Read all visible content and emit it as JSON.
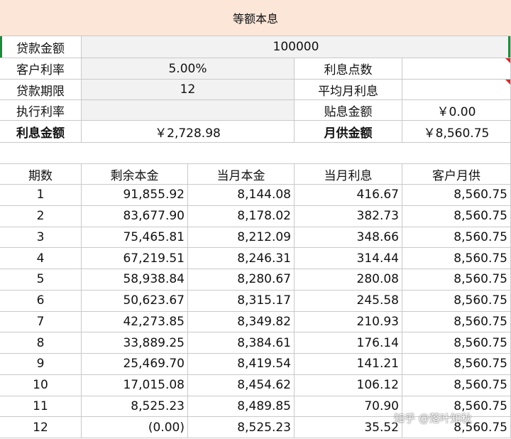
{
  "title": "等额本息",
  "summary": {
    "loan_amount_label": "贷款金额",
    "loan_amount_value": "100000",
    "customer_rate_label": "客户利率",
    "customer_rate_value": "5.00%",
    "interest_points_label": "利息点数",
    "interest_points_value": "",
    "loan_term_label": "贷款期限",
    "loan_term_value": "12",
    "avg_monthly_interest_label": "平均月利息",
    "avg_monthly_interest_value": "",
    "exec_rate_label": "执行利率",
    "exec_rate_value": "",
    "subsidy_label": "贴息金额",
    "subsidy_value": "￥0.00",
    "total_interest_label": "利息金额",
    "total_interest_value": "￥2,728.98",
    "monthly_payment_label": "月供金额",
    "monthly_payment_value": "￥8,560.75"
  },
  "table": {
    "headers": [
      "期数",
      "剩余本金",
      "当月本金",
      "当月利息",
      "客户月供"
    ],
    "rows": [
      [
        "1",
        "91,855.92",
        "8,144.08",
        "416.67",
        "8,560.75"
      ],
      [
        "2",
        "83,677.90",
        "8,178.02",
        "382.73",
        "8,560.75"
      ],
      [
        "3",
        "75,465.81",
        "8,212.09",
        "348.66",
        "8,560.75"
      ],
      [
        "4",
        "67,219.51",
        "8,246.31",
        "314.44",
        "8,560.75"
      ],
      [
        "5",
        "58,938.84",
        "8,280.67",
        "280.08",
        "8,560.75"
      ],
      [
        "6",
        "50,623.67",
        "8,315.17",
        "245.58",
        "8,560.75"
      ],
      [
        "7",
        "42,273.85",
        "8,349.82",
        "210.93",
        "8,560.75"
      ],
      [
        "8",
        "33,889.25",
        "8,384.61",
        "176.14",
        "8,560.75"
      ],
      [
        "9",
        "25,469.70",
        "8,419.54",
        "141.21",
        "8,560.75"
      ],
      [
        "10",
        "17,015.08",
        "8,454.62",
        "106.12",
        "8,560.75"
      ],
      [
        "11",
        "8,525.23",
        "8,489.85",
        "70.90",
        "8,560.75"
      ],
      [
        "12",
        "(0.00)",
        "8,525.23",
        "35.52",
        "8,560.75"
      ]
    ]
  },
  "watermark": "知乎 @落叶知秋"
}
